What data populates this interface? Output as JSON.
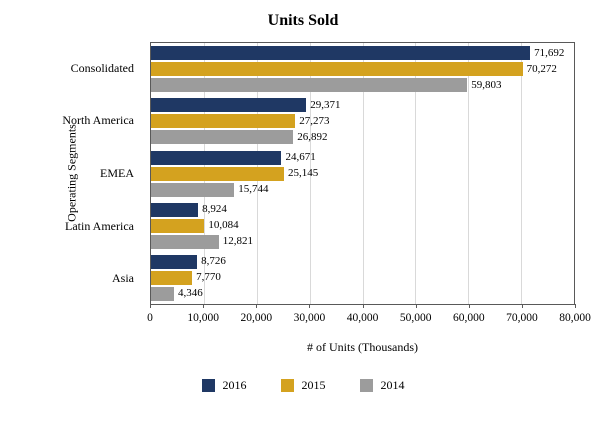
{
  "chart_data": {
    "type": "bar",
    "orientation": "horizontal",
    "title": "Units Sold",
    "xlabel": "# of Units (Thousands)",
    "ylabel": "Operating Segments",
    "categories": [
      "Consolidated",
      "North America",
      "EMEA",
      "Latin America",
      "Asia"
    ],
    "series": [
      {
        "name": "2016",
        "color": "#1F3864",
        "values": [
          71692,
          29371,
          24671,
          8924,
          8726
        ]
      },
      {
        "name": "2015",
        "color": "#D4A21F",
        "values": [
          70272,
          27273,
          25145,
          10084,
          7770
        ]
      },
      {
        "name": "2014",
        "color": "#9C9C9C",
        "values": [
          59803,
          26892,
          15744,
          12821,
          4346
        ]
      }
    ],
    "xlim": [
      0,
      80000
    ],
    "xticks": [
      0,
      10000,
      20000,
      30000,
      40000,
      50000,
      60000,
      70000,
      80000
    ],
    "xtick_labels": [
      "0",
      "10,000",
      "20,000",
      "30,000",
      "40,000",
      "50,000",
      "60,000",
      "70,000",
      "80,000"
    ],
    "grid": true,
    "legend_position": "bottom",
    "data_labels": true
  }
}
